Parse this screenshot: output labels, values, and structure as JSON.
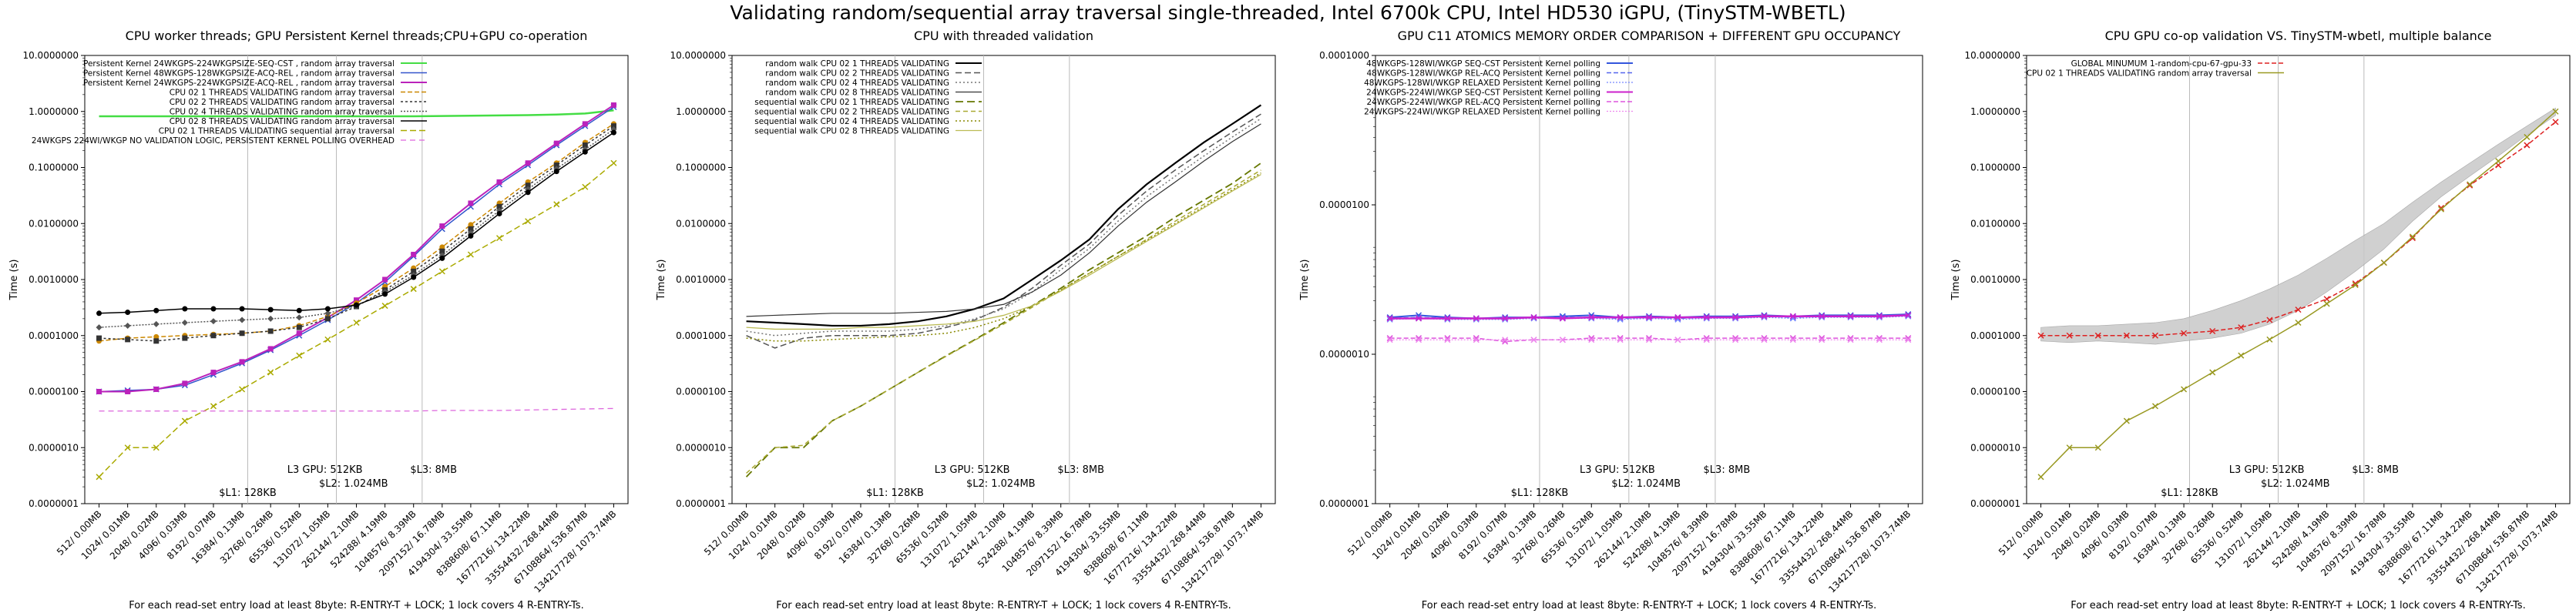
{
  "suptitle": "Validating random/sequential array traversal single-threaded, Intel 6700k CPU, Intel HD530 iGPU, (TinySTM-WBETL)",
  "shared": {
    "ylabel": "Time (s)",
    "footnote": "For each read-set entry load at least 8byte: R-ENTRY-T + LOCK; 1 lock covers 4 R-ENTRY-Ts.",
    "x_tick_labels": [
      "512/ 0.00MB",
      "1024/ 0.01MB",
      "2048/ 0.02MB",
      "4096/ 0.03MB",
      "8192/ 0.07MB",
      "16384/ 0.13MB",
      "32768/ 0.26MB",
      "65536/ 0.52MB",
      "131072/ 1.05MB",
      "262144/ 2.10MB",
      "524288/ 4.19MB",
      "1048576/ 8.39MB",
      "2097152/ 16.78MB",
      "4194304/ 33.55MB",
      "8388608/ 67.11MB",
      "16777216/ 134.22MB",
      "33554432/ 268.44MB",
      "67108864/ 536.87MB",
      "134217728/ 1073.74MB"
    ],
    "cache_labels": {
      "l1": "$L1: 128KB",
      "l2": "$L2: 1.024MB",
      "l3gpu": "L3 GPU: 512KB",
      "l3": "$L3: 8MB"
    }
  },
  "chart_data": [
    {
      "type": "line",
      "title": "CPU worker threads; GPU Persistent Kernel threads;CPU+GPU co-operation",
      "ylim": [
        1e-07,
        10
      ],
      "yscale": "log",
      "y_tick_labels": [
        "0.0000001",
        "0.0000010",
        "0.0000100",
        "0.0001000",
        "0.0010000",
        "0.0100000",
        "0.1000000",
        "1.0000000",
        "10.0000000"
      ],
      "legend_loc": "upper-left",
      "series": [
        {
          "name": "Persistent Kernel 24WKGPS-224WKGPSIZE-SEQ-CST , random array traversal",
          "color": "#44dd44",
          "marker": "none",
          "dash": "",
          "width": 2.5,
          "values": [
            0.82,
            0.82,
            0.82,
            0.82,
            0.82,
            0.82,
            0.82,
            0.82,
            0.82,
            0.82,
            0.82,
            0.82,
            0.83,
            0.84,
            0.85,
            0.86,
            0.88,
            0.92,
            1.05
          ]
        },
        {
          "name": "Persistent Kernel 48WKGPS-128WKGPSIZE-ACQ-REL , random array traversal",
          "color": "#3355cc",
          "marker": "x",
          "dash": "",
          "width": 1.5,
          "values": [
            1e-05,
            1.05e-05,
            1.1e-05,
            1.3e-05,
            2e-05,
            3.2e-05,
            5.5e-05,
            0.0001,
            0.00019,
            0.00038,
            0.0009,
            0.0026,
            0.008,
            0.02,
            0.05,
            0.11,
            0.25,
            0.55,
            1.2
          ]
        },
        {
          "name": "Persistent Kernel 24WKGPS-224WKGPSIZE-ACQ-REL , random array traversal",
          "color": "#bb22bb",
          "marker": "square",
          "dash": "",
          "width": 2,
          "values": [
            1e-05,
            1e-05,
            1.1e-05,
            1.4e-05,
            2.2e-05,
            3.4e-05,
            5.8e-05,
            0.00011,
            0.00021,
            0.00043,
            0.001,
            0.0028,
            0.009,
            0.023,
            0.055,
            0.12,
            0.27,
            0.6,
            1.3
          ]
        },
        {
          "name": "CPU 02 1 THREADS VALIDATING random array traversal",
          "color": "#cc8800",
          "marker": "circle",
          "dash": "6,3",
          "width": 1.5,
          "values": [
            8e-05,
            9e-05,
            9.5e-05,
            0.0001,
            0.000105,
            0.00011,
            0.00012,
            0.00015,
            0.00022,
            0.00038,
            0.00075,
            0.0016,
            0.0038,
            0.0095,
            0.023,
            0.055,
            0.12,
            0.28,
            0.6
          ]
        },
        {
          "name": "CPU 02 2 THREADS VALIDATING random array traversal",
          "color": "#333333",
          "marker": "square",
          "dash": "3,3",
          "width": 1.5,
          "values": [
            9e-05,
            8.5e-05,
            8e-05,
            9e-05,
            0.0001,
            0.00011,
            0.00012,
            0.00014,
            0.0002,
            0.00033,
            0.00065,
            0.0014,
            0.0032,
            0.008,
            0.02,
            0.048,
            0.11,
            0.25,
            0.55
          ]
        },
        {
          "name": "CPU 02 4 THREADS VALIDATING random array traversal",
          "color": "#555555",
          "marker": "diamond",
          "dash": "2,2",
          "width": 1.5,
          "values": [
            0.00014,
            0.00015,
            0.00016,
            0.00017,
            0.00018,
            0.00019,
            0.0002,
            0.00021,
            0.00025,
            0.00034,
            0.0006,
            0.0012,
            0.0027,
            0.0068,
            0.017,
            0.041,
            0.095,
            0.21,
            0.48
          ]
        },
        {
          "name": "CPU 02 8 THREADS VALIDATING random array traversal",
          "color": "#000000",
          "marker": "circle",
          "dash": "",
          "width": 1.5,
          "values": [
            0.00025,
            0.00026,
            0.00028,
            0.0003,
            0.0003,
            0.0003,
            0.00029,
            0.00028,
            0.0003,
            0.00035,
            0.00055,
            0.0011,
            0.0024,
            0.006,
            0.015,
            0.036,
            0.085,
            0.19,
            0.42
          ]
        },
        {
          "name": "CPU 02 1 THREADS VALIDATING sequential array traversal",
          "color": "#aaaa00",
          "marker": "x",
          "dash": "8,4",
          "width": 1.5,
          "values": [
            3e-07,
            1e-06,
            1e-06,
            3e-06,
            5.5e-06,
            1.1e-05,
            2.2e-05,
            4.4e-05,
            8.5e-05,
            0.00017,
            0.00034,
            0.00068,
            0.0014,
            0.0028,
            0.0055,
            0.011,
            0.022,
            0.045,
            0.12
          ]
        },
        {
          "name": "24WKGPS 224WI/WKGP NO VALIDATION LOGIC, PERSISTENT KERNEL POLLING OVERHEAD",
          "color": "#dd66dd",
          "marker": "none",
          "dash": "7,5",
          "width": 1.3,
          "values": [
            4.5e-06,
            4.5e-06,
            4.5e-06,
            4.5e-06,
            4.5e-06,
            4.5e-06,
            4.5e-06,
            4.5e-06,
            4.5e-06,
            4.5e-06,
            4.5e-06,
            4.5e-06,
            4.6e-06,
            4.6e-06,
            4.6e-06,
            4.7e-06,
            4.8e-06,
            4.9e-06,
            5e-06
          ]
        }
      ]
    },
    {
      "type": "line",
      "title": "CPU with threaded validation",
      "ylim": [
        1e-07,
        10
      ],
      "yscale": "log",
      "y_tick_labels": [
        "0.0000001",
        "0.0000010",
        "0.0000100",
        "0.0001000",
        "0.0010000",
        "0.0100000",
        "0.1000000",
        "1.0000000",
        "10.0000000"
      ],
      "legend_loc": "upper-left",
      "series": [
        {
          "name": "random walk CPU 02  1 THREADS VALIDATING",
          "color": "#000000",
          "marker": "none",
          "dash": "",
          "width": 2.2,
          "values": [
            0.00018,
            0.00017,
            0.00016,
            0.00015,
            0.00015,
            0.00016,
            0.00018,
            0.00022,
            0.0003,
            0.00046,
            0.001,
            0.0022,
            0.0052,
            0.018,
            0.05,
            0.12,
            0.28,
            0.6,
            1.3
          ]
        },
        {
          "name": "random walk CPU 02  2 THREADS VALIDATING",
          "color": "#555555",
          "marker": "none",
          "dash": "8,4",
          "width": 1.5,
          "values": [
            0.0001,
            6e-05,
            9e-05,
            0.0001,
            0.0001,
            0.0001,
            0.00011,
            0.00014,
            0.00019,
            0.00032,
            0.0007,
            0.0018,
            0.0043,
            0.014,
            0.038,
            0.09,
            0.2,
            0.43,
            0.9
          ]
        },
        {
          "name": "random walk CPU 02  4 THREADS VALIDATING",
          "color": "#777777",
          "marker": "none",
          "dash": "2,3",
          "width": 1.5,
          "values": [
            0.00012,
            0.0001,
            0.00011,
            0.00012,
            0.00012,
            0.00012,
            0.00013,
            0.00015,
            0.0002,
            0.0003,
            0.0006,
            0.0015,
            0.0036,
            0.011,
            0.03,
            0.07,
            0.16,
            0.35,
            0.75
          ]
        },
        {
          "name": "random walk CPU 02  8 THREADS VALIDATING",
          "color": "#333333",
          "marker": "none",
          "dash": "",
          "width": 1.2,
          "values": [
            0.00022,
            0.00023,
            0.00024,
            0.00025,
            0.00025,
            0.00025,
            0.00026,
            0.00027,
            0.0003,
            0.00036,
            0.0006,
            0.0012,
            0.003,
            0.009,
            0.024,
            0.055,
            0.13,
            0.29,
            0.6
          ]
        },
        {
          "name": "sequential walk CPU 02  1 THREADS VALIDATING",
          "color": "#667700",
          "marker": "none",
          "dash": "10,5",
          "width": 1.8,
          "values": [
            3e-07,
            1e-06,
            1e-06,
            3e-06,
            5.5e-06,
            1.1e-05,
            2.2e-05,
            4.4e-05,
            8.5e-05,
            0.00017,
            0.00034,
            0.0007,
            0.0015,
            0.003,
            0.006,
            0.013,
            0.026,
            0.052,
            0.12
          ]
        },
        {
          "name": "sequential walk CPU 02  2 THREADS VALIDATING",
          "color": "#aaaa33",
          "marker": "none",
          "dash": "6,4",
          "width": 1.5,
          "values": [
            3.5e-07,
            1e-06,
            1.1e-06,
            3e-06,
            5.5e-06,
            1.1e-05,
            2.2e-05,
            4.3e-05,
            8.3e-05,
            0.00016,
            0.00032,
            0.00065,
            0.0013,
            0.0026,
            0.0052,
            0.011,
            0.022,
            0.044,
            0.09
          ]
        },
        {
          "name": "sequential walk CPU 02  4 THREADS VALIDATING",
          "color": "#888800",
          "marker": "none",
          "dash": "2,3",
          "width": 1.5,
          "values": [
            9e-05,
            8e-05,
            8e-05,
            8.5e-05,
            9e-05,
            9.5e-05,
            0.0001,
            0.00011,
            0.00014,
            0.0002,
            0.00034,
            0.00065,
            0.0013,
            0.0026,
            0.005,
            0.01,
            0.02,
            0.04,
            0.08
          ]
        },
        {
          "name": "sequential walk CPU 02  8 THREADS VALIDATING",
          "color": "#bbbb55",
          "marker": "none",
          "dash": "",
          "width": 1.3,
          "values": [
            0.00014,
            0.00013,
            0.00013,
            0.00013,
            0.00014,
            0.00014,
            0.00015,
            0.00016,
            0.00018,
            0.00023,
            0.00034,
            0.00062,
            0.0012,
            0.0024,
            0.0048,
            0.0095,
            0.019,
            0.038,
            0.075
          ]
        }
      ]
    },
    {
      "type": "line",
      "title": "GPU C11 ATOMICS MEMORY ORDER COMPARISON + DIFFERENT GPU OCCUPANCY",
      "ylim": [
        1e-07,
        0.001
      ],
      "yscale": "log",
      "y_tick_labels": [
        "0.0000001",
        "0.0000010",
        "0.0000100",
        "0.0001000"
      ],
      "legend_loc": "upper-left",
      "series": [
        {
          "name": "48WKGPS-128WI/WKGP SEQ-CST Persistent Kernel polling",
          "color": "#3355dd",
          "marker": "x",
          "dash": "",
          "width": 2,
          "values": [
            4.6e-06,
            4.8e-06,
            4.6e-06,
            4.5e-06,
            4.6e-06,
            4.6e-06,
            4.7e-06,
            4.8e-06,
            4.6e-06,
            4.7e-06,
            4.6e-06,
            4.7e-06,
            4.7e-06,
            4.8e-06,
            4.7e-06,
            4.8e-06,
            4.8e-06,
            4.8e-06,
            4.9e-06
          ]
        },
        {
          "name": "48WKGPS-128WI/WKGP REL-ACQ Persistent Kernel polling",
          "color": "#5566ee",
          "marker": "x",
          "dash": "6,3",
          "width": 1.5,
          "values": [
            4.5e-06,
            4.6e-06,
            4.5e-06,
            4.5e-06,
            4.5e-06,
            4.6e-06,
            4.6e-06,
            4.6e-06,
            4.5e-06,
            4.6e-06,
            4.5e-06,
            4.6e-06,
            4.6e-06,
            4.7e-06,
            4.6e-06,
            4.7e-06,
            4.7e-06,
            4.7e-06,
            4.8e-06
          ]
        },
        {
          "name": "48WKGPS-128WI/WKGP RELAXED Persistent Kernel polling",
          "color": "#7788ff",
          "marker": "x",
          "dash": "2,2",
          "width": 1.3,
          "values": [
            4.4e-06,
            4.5e-06,
            4.4e-06,
            4.4e-06,
            4.4e-06,
            4.5e-06,
            4.5e-06,
            4.5e-06,
            4.4e-06,
            4.5e-06,
            4.4e-06,
            4.5e-06,
            4.5e-06,
            4.6e-06,
            4.5e-06,
            4.6e-06,
            4.6e-06,
            4.6e-06,
            4.7e-06
          ]
        },
        {
          "name": "24WKGPS-224WI/WKGP SEQ-CST Persistent Kernel polling",
          "color": "#cc22cc",
          "marker": "x",
          "dash": "",
          "width": 2.5,
          "values": [
            4.5e-06,
            4.5e-06,
            4.5e-06,
            4.5e-06,
            4.5e-06,
            4.6e-06,
            4.5e-06,
            4.6e-06,
            4.6e-06,
            4.6e-06,
            4.6e-06,
            4.6e-06,
            4.6e-06,
            4.7e-06,
            4.7e-06,
            4.7e-06,
            4.7e-06,
            4.7e-06,
            4.8e-06
          ]
        },
        {
          "name": "24WKGPS-224WI/WKGP REL-ACQ Persistent Kernel polling",
          "color": "#dd55dd",
          "marker": "x",
          "dash": "6,3",
          "width": 1.5,
          "values": [
            3e-06,
            3e-06,
            3e-06,
            3e-06,
            2.8e-06,
            2.9e-06,
            2.9e-06,
            3e-06,
            3e-06,
            3e-06,
            2.9e-06,
            3e-06,
            3e-06,
            3e-06,
            3e-06,
            3e-06,
            3e-06,
            3e-06,
            3e-06
          ]
        },
        {
          "name": "24WKGPS-224WI/WKGP RELAXED Persistent Kernel polling",
          "color": "#ee88ee",
          "marker": "x",
          "dash": "2,2",
          "width": 1.3,
          "values": [
            2.9e-06,
            2.9e-06,
            2.9e-06,
            2.9e-06,
            2.9e-06,
            2.9e-06,
            2.9e-06,
            2.9e-06,
            2.9e-06,
            2.9e-06,
            2.9e-06,
            2.9e-06,
            2.9e-06,
            2.9e-06,
            2.9e-06,
            2.9e-06,
            2.9e-06,
            2.9e-06,
            2.9e-06
          ]
        }
      ]
    },
    {
      "type": "line",
      "title": "CPU GPU co-op validation VS. TinySTM-wbetl, multiple balance",
      "ylim": [
        1e-07,
        10
      ],
      "yscale": "log",
      "y_tick_labels": [
        "0.0000001",
        "0.0000010",
        "0.0000100",
        "0.0001000",
        "0.0010000",
        "0.0100000",
        "0.1000000",
        "1.0000000",
        "10.0000000"
      ],
      "legend_loc": "upper-left",
      "band": {
        "color": "#c8c8c8",
        "low": [
          8e-05,
          7.5e-05,
          8e-05,
          7.5e-05,
          7e-05,
          8e-05,
          9e-05,
          0.00011,
          0.00016,
          0.00028,
          0.0006,
          0.0014,
          0.0035,
          0.011,
          0.03,
          0.07,
          0.16,
          0.38,
          0.85
        ],
        "high": [
          0.00014,
          0.00015,
          0.00015,
          0.00016,
          0.00017,
          0.0002,
          0.00028,
          0.00042,
          0.00068,
          0.0012,
          0.0024,
          0.005,
          0.01,
          0.024,
          0.055,
          0.12,
          0.26,
          0.55,
          1.15
        ]
      },
      "series": [
        {
          "name": "GLOBAL MINUMUM 1-random-cpu-67-gpu-33",
          "color": "#dd2222",
          "marker": "x",
          "dash": "6,3",
          "width": 1.5,
          "values": [
            0.0001,
            0.0001,
            0.0001,
            0.0001,
            0.0001,
            0.00011,
            0.00012,
            0.00014,
            0.00019,
            0.00029,
            0.00045,
            0.00085,
            0.002,
            0.0055,
            0.019,
            0.048,
            0.11,
            0.25,
            0.65
          ]
        },
        {
          "name": "CPU 02 1 THREADS VALIDATING random array traversal",
          "color": "#999922",
          "marker": "x",
          "dash": "",
          "width": 1.5,
          "values": [
            3e-07,
            1e-06,
            1e-06,
            3e-06,
            5.5e-06,
            1.1e-05,
            2.2e-05,
            4.4e-05,
            8.5e-05,
            0.00017,
            0.00037,
            0.0008,
            0.002,
            0.0058,
            0.018,
            0.05,
            0.13,
            0.35,
            1.0
          ]
        }
      ]
    }
  ]
}
